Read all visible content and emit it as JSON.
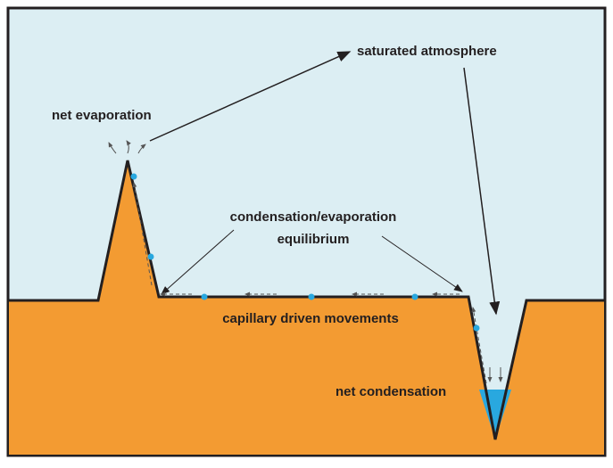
{
  "labels": {
    "saturated_atmosphere": "saturated atmosphere",
    "net_evaporation": "net evaporation",
    "equilibrium_line1": "condensation/evaporation",
    "equilibrium_line2": "equilibrium",
    "capillary": "capillary driven movements",
    "net_condensation": "net condensation"
  }
}
